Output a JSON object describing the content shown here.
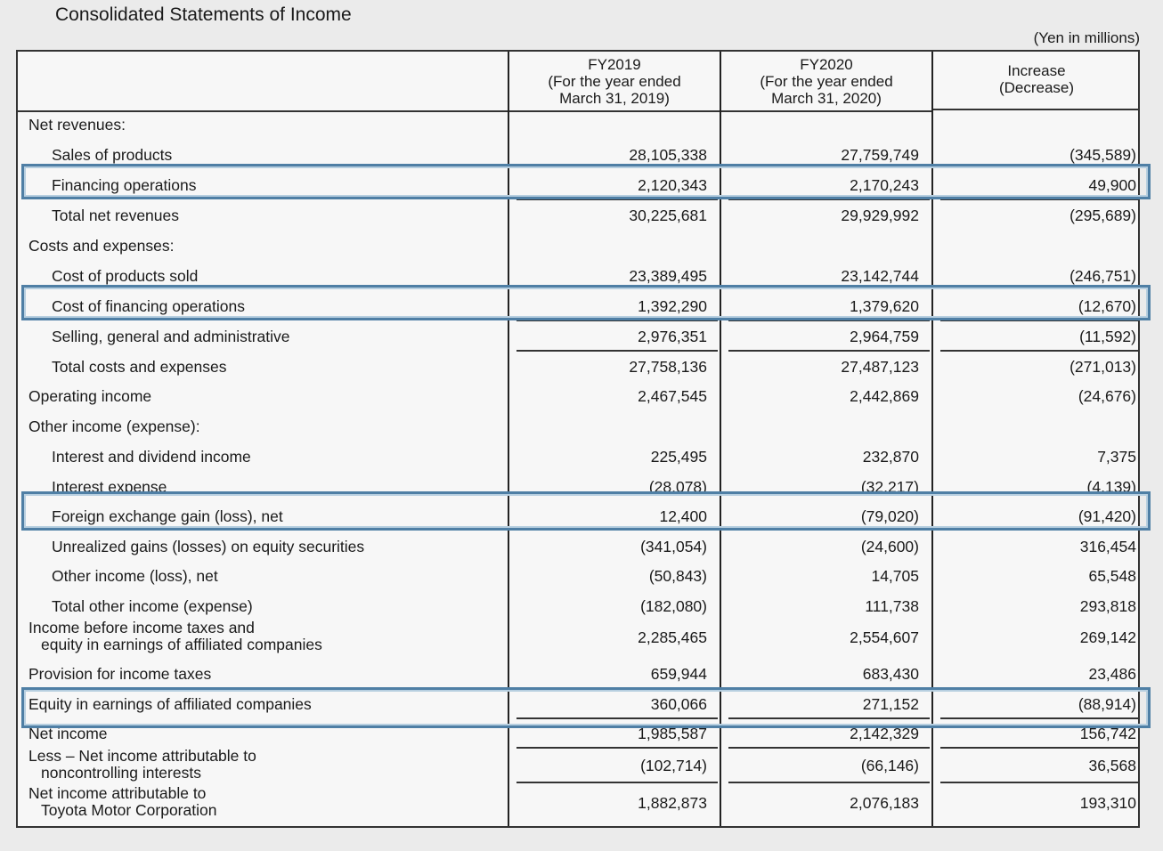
{
  "title": "Consolidated Statements of Income",
  "units": "(Yen in millions)",
  "headers": {
    "fy2019": [
      "FY2019",
      "(For the year ended",
      "March 31, 2019)"
    ],
    "fy2020": [
      "FY2020",
      "(For the year ended",
      "March 31, 2020)"
    ],
    "increase": [
      "Increase",
      "(Decrease)"
    ]
  },
  "rows": [
    {
      "label": "Net revenues:",
      "v": [
        "",
        "",
        ""
      ]
    },
    {
      "label": "Sales of products",
      "v": [
        "28,105,338",
        "27,759,749",
        "(345,589)"
      ]
    },
    {
      "label": "Financing operations",
      "v": [
        "2,120,343",
        "2,170,243",
        "49,900"
      ]
    },
    {
      "label": "Total net revenues",
      "v": [
        "30,225,681",
        "29,929,992",
        "(295,689)"
      ]
    },
    {
      "label": "Costs and expenses:",
      "v": [
        "",
        "",
        ""
      ]
    },
    {
      "label": "Cost of products sold",
      "v": [
        "23,389,495",
        "23,142,744",
        "(246,751)"
      ]
    },
    {
      "label": "Cost of financing operations",
      "v": [
        "1,392,290",
        "1,379,620",
        "(12,670)"
      ]
    },
    {
      "label": "Selling, general and administrative",
      "v": [
        "2,976,351",
        "2,964,759",
        "(11,592)"
      ]
    },
    {
      "label": "Total costs and expenses",
      "v": [
        "27,758,136",
        "27,487,123",
        "(271,013)"
      ]
    },
    {
      "label": "Operating income",
      "v": [
        "2,467,545",
        "2,442,869",
        "(24,676)"
      ]
    },
    {
      "label": "Other income (expense):",
      "v": [
        "",
        "",
        ""
      ]
    },
    {
      "label": "Interest and dividend income",
      "v": [
        "225,495",
        "232,870",
        "7,375"
      ]
    },
    {
      "label": "Interest expense",
      "v": [
        "(28,078)",
        "(32,217)",
        "(4,139)"
      ]
    },
    {
      "label": "Foreign exchange gain (loss), net",
      "v": [
        "12,400",
        "(79,020)",
        "(91,420)"
      ]
    },
    {
      "label": "Unrealized gains (losses) on equity securities",
      "v": [
        "(341,054)",
        "(24,600)",
        "316,454"
      ]
    },
    {
      "label": "Other income (loss), net",
      "v": [
        "(50,843)",
        "14,705",
        "65,548"
      ]
    },
    {
      "label": "Total other income (expense)",
      "v": [
        "(182,080)",
        "111,738",
        "293,818"
      ]
    },
    {
      "label": "Income before income taxes and",
      "label2": "equity in earnings of affiliated companies",
      "v": [
        "2,285,465",
        "2,554,607",
        "269,142"
      ]
    },
    {
      "label": "Provision for income taxes",
      "v": [
        "659,944",
        "683,430",
        "23,486"
      ]
    },
    {
      "label": "Equity in earnings of affiliated companies",
      "v": [
        "360,066",
        "271,152",
        "(88,914)"
      ]
    },
    {
      "label": "Net income",
      "v": [
        "1,985,587",
        "2,142,329",
        "156,742"
      ]
    },
    {
      "label": "Less – Net income attributable to",
      "label2": "noncontrolling interests",
      "v": [
        "(102,714)",
        "(66,146)",
        "36,568"
      ]
    },
    {
      "label": "Net income attributable to",
      "label2": "Toyota Motor Corporation",
      "v": [
        "1,882,873",
        "2,076,183",
        "193,310"
      ]
    }
  ],
  "highlight_color": "#4f7fa5"
}
